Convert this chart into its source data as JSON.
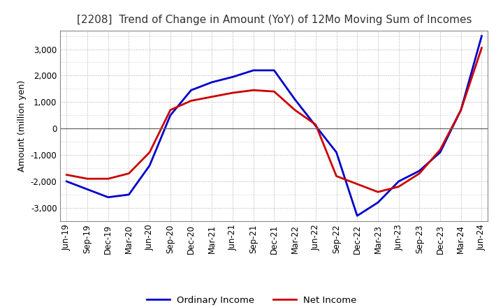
{
  "title": "[2208]  Trend of Change in Amount (YoY) of 12Mo Moving Sum of Incomes",
  "ylabel": "Amount (million yen)",
  "ylim": [
    -3500,
    3700
  ],
  "yticks": [
    -3000,
    -2000,
    -1000,
    0,
    1000,
    2000,
    3000
  ],
  "bg_color": "#ffffff",
  "grid_color": "#aaaaaa",
  "ordinary_income_color": "#0000cc",
  "net_income_color": "#cc0000",
  "legend_labels": [
    "Ordinary Income",
    "Net Income"
  ],
  "x_labels": [
    "Jun-19",
    "Sep-19",
    "Dec-19",
    "Mar-20",
    "Jun-20",
    "Sep-20",
    "Dec-20",
    "Mar-21",
    "Jun-21",
    "Sep-21",
    "Dec-21",
    "Mar-22",
    "Jun-22",
    "Sep-22",
    "Dec-22",
    "Mar-23",
    "Jun-23",
    "Sep-23",
    "Dec-23",
    "Mar-24",
    "Jun-24"
  ],
  "ordinary_income": [
    -2000,
    -2300,
    -2600,
    -2500,
    -1400,
    500,
    1450,
    1750,
    1950,
    2200,
    2200,
    1100,
    100,
    -900,
    -3300,
    -2800,
    -2000,
    -1600,
    -900,
    700,
    3500
  ],
  "net_income": [
    -1750,
    -1900,
    -1900,
    -1700,
    -900,
    700,
    1050,
    1200,
    1350,
    1450,
    1400,
    700,
    150,
    -1800,
    -2100,
    -2400,
    -2200,
    -1700,
    -800,
    700,
    3050
  ]
}
